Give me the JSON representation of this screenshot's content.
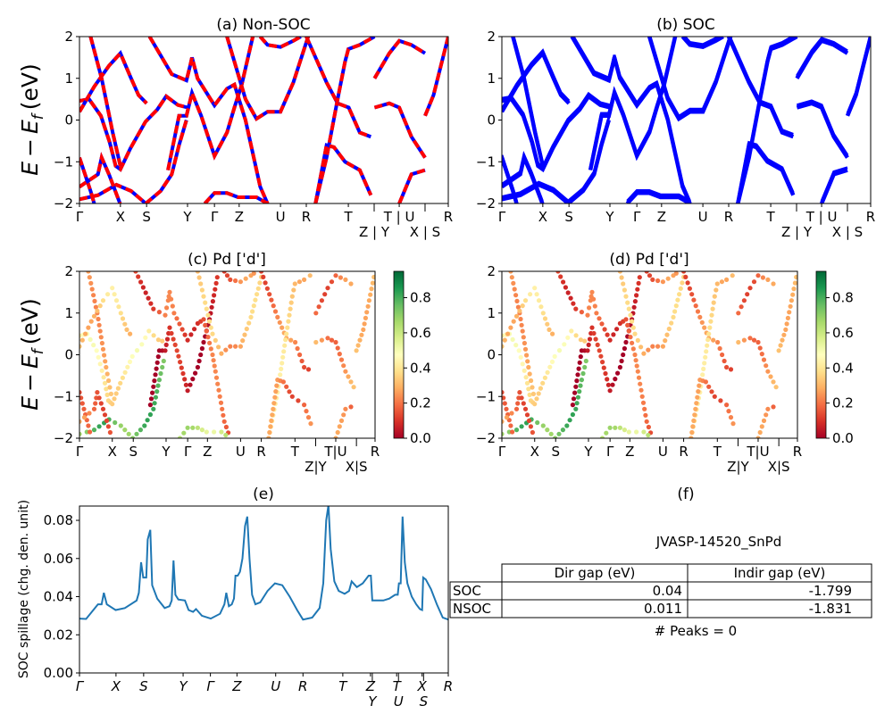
{
  "ylabel": {
    "e": "E",
    "minus": "−",
    "sub": "f",
    "unit": "(eV)"
  },
  "kpath_labels": [
    "Γ",
    "X",
    "S",
    "Y",
    "Γ",
    "Z",
    "U",
    "R",
    "T",
    "Z|Y",
    "T|U",
    "X|S",
    "R"
  ],
  "kpath_label_text": [
    "Γ",
    "X",
    "S",
    "Y",
    "Γ",
    "Z",
    "U",
    "R",
    "T",
    "Z | Y",
    "T | U",
    "X | S",
    "R"
  ],
  "kpath_positions": [
    0,
    0.111,
    0.182,
    0.293,
    0.366,
    0.433,
    0.545,
    0.615,
    0.729,
    0.799,
    0.867,
    0.937,
    1
  ],
  "chart_data": [
    {
      "panel": "a",
      "type": "line",
      "title": "(a) Non-SOC",
      "ylim": [
        -2,
        2
      ],
      "yticks": [
        "−2",
        "−1",
        "0",
        "1",
        "2"
      ],
      "colors": {
        "line": "#ff0000",
        "dash": "#0000ff"
      }
    },
    {
      "panel": "b",
      "type": "line",
      "title": "(b) SOC",
      "ylim": [
        -2,
        2
      ],
      "yticks": [
        "−2",
        "−1",
        "0",
        "1",
        "2"
      ],
      "colors": {
        "line": "#0000ff"
      }
    },
    {
      "panel": "c",
      "type": "scatter",
      "title": "(c)  Pd ['d']",
      "ylim": [
        -2,
        2
      ],
      "yticks": [
        "−2",
        "−1",
        "0",
        "1",
        "2"
      ],
      "colorbar": {
        "range": [
          0,
          0.95
        ],
        "ticks": [
          "0.0",
          "0.2",
          "0.4",
          "0.6",
          "0.8"
        ],
        "colormap": "RdYlGn"
      }
    },
    {
      "panel": "d",
      "type": "scatter",
      "title": "(d) Pd ['d']",
      "ylim": [
        -2,
        2
      ],
      "yticks": [
        "−2",
        "−1",
        "0",
        "1",
        "2"
      ],
      "colorbar": {
        "range": [
          0,
          0.95
        ],
        "ticks": [
          "0.0",
          "0.2",
          "0.4",
          "0.6",
          "0.8"
        ],
        "colormap": "RdYlGn"
      }
    },
    {
      "panel": "e",
      "type": "line",
      "title": "(e)",
      "ylabel": "SOC spillage (chg. den. unit)",
      "ylim": [
        0,
        0.0875
      ],
      "yticks": [
        "0.00",
        "0.02",
        "0.04",
        "0.06",
        "0.08"
      ],
      "xtick_labels": [
        "Γ",
        "X",
        "S",
        "Y",
        "Γ",
        "Z",
        "U",
        "R",
        "T",
        "Z",
        "Y",
        "T",
        "U",
        "X",
        "S",
        "R"
      ],
      "xtick_positions": [
        0,
        9.9,
        17.4,
        28.1,
        35.5,
        42.7,
        53.2,
        60.6,
        71.4,
        78.9,
        79.4,
        86.0,
        86.5,
        92.9,
        93.3,
        100
      ],
      "color": "#1f77b4",
      "x": [
        0,
        1.8,
        5.0,
        6.0,
        6.6,
        7.4,
        9.8,
        12.3,
        15.5,
        16.1,
        16.7,
        17.3,
        18.1,
        18.5,
        19.2,
        19.7,
        21.1,
        23.1,
        24.4,
        25.0,
        25.5,
        26.0,
        26.8,
        28.6,
        29.6,
        30.8,
        31.6,
        33.2,
        35.6,
        38.1,
        39.3,
        39.8,
        40.5,
        41.3,
        41.9,
        42.3,
        42.9,
        43.5,
        44.2,
        44.9,
        45.5,
        46.1,
        46.8,
        47.7,
        49.0,
        51.0,
        53.0,
        55.0,
        57.0,
        59.0,
        60.6,
        63.1,
        65.1,
        66.1,
        66.9,
        67.5,
        68.1,
        69.1,
        70.3,
        71.9,
        73.1,
        73.8,
        75.2,
        76.8,
        78.4,
        79.0,
        79.4,
        82.4,
        84.0,
        85.6,
        86.3,
        86.6,
        87.1,
        87.6,
        88.2,
        88.9,
        90.1,
        91.3,
        92.3,
        92.9,
        93.2,
        93.9,
        95.3,
        96.9,
        98.5,
        100
      ],
      "y": [
        0.0285,
        0.0283,
        0.036,
        0.036,
        0.042,
        0.036,
        0.033,
        0.034,
        0.038,
        0.042,
        0.058,
        0.05,
        0.05,
        0.07,
        0.075,
        0.046,
        0.039,
        0.034,
        0.035,
        0.038,
        0.059,
        0.041,
        0.0385,
        0.038,
        0.033,
        0.032,
        0.0335,
        0.03,
        0.0285,
        0.031,
        0.036,
        0.042,
        0.035,
        0.036,
        0.039,
        0.051,
        0.051,
        0.053,
        0.06,
        0.077,
        0.082,
        0.06,
        0.041,
        0.036,
        0.037,
        0.043,
        0.047,
        0.046,
        0.04,
        0.033,
        0.028,
        0.029,
        0.034,
        0.047,
        0.08,
        0.088,
        0.065,
        0.048,
        0.043,
        0.0415,
        0.043,
        0.048,
        0.045,
        0.047,
        0.051,
        0.051,
        0.038,
        0.038,
        0.039,
        0.041,
        0.041,
        0.047,
        0.047,
        0.082,
        0.058,
        0.047,
        0.04,
        0.036,
        0.0335,
        0.033,
        0.05,
        0.049,
        0.044,
        0.036,
        0.029,
        0.028
      ]
    },
    {
      "panel": "f",
      "type": "table",
      "title": "(f)",
      "material": "JVASP-14520_SnPd",
      "columns": [
        "Dir gap (eV)",
        "Indir gap (eV)"
      ],
      "rows": [
        {
          "label": "SOC",
          "dir": "0.04",
          "indir": "-1.799"
        },
        {
          "label": "NSOC",
          "dir": "0.011",
          "indir": "-1.831"
        }
      ],
      "peaks": "# Peaks = 0"
    }
  ],
  "bands": [
    {
      "pd_d": 0.42,
      "points": [
        [
          0,
          0.46
        ],
        [
          0.026,
          0.5
        ],
        [
          0.058,
          0.1
        ],
        [
          0.082,
          -0.54
        ],
        [
          0.098,
          -1.1
        ],
        [
          0.111,
          -1.18
        ],
        [
          0.138,
          -0.68
        ],
        [
          0.179,
          -0.04
        ],
        [
          0.211,
          0.25
        ],
        [
          0.235,
          0.57
        ],
        [
          0.267,
          0.36
        ],
        [
          0.293,
          0.3
        ]
      ]
    },
    {
      "pd_d": 0.05,
      "points": [
        [
          0.24,
          -1.2
        ],
        [
          0.27,
          0.1
        ],
        [
          0.29,
          0.1
        ],
        [
          0.305,
          0.65
        ],
        [
          0.33,
          0.1
        ],
        [
          0.366,
          -0.86
        ],
        [
          0.4,
          -0.3
        ],
        [
          0.42,
          0.3
        ],
        [
          0.44,
          0.85
        ],
        [
          0.47,
          2.0
        ]
      ]
    },
    {
      "pd_d": 0.15,
      "points": [
        [
          0.19,
          2
        ],
        [
          0.25,
          1.1
        ],
        [
          0.29,
          0.95
        ],
        [
          0.3,
          1.3
        ],
        [
          0.305,
          1.5
        ],
        [
          0.32,
          1.0
        ],
        [
          0.366,
          0.35
        ],
        [
          0.4,
          0.75
        ],
        [
          0.42,
          0.85
        ],
        [
          0.45,
          0.0
        ],
        [
          0.46,
          -0.4
        ],
        [
          0.49,
          -1.6
        ],
        [
          0.51,
          -2
        ]
      ]
    },
    {
      "pd_d": 0.3,
      "points": [
        [
          0.4,
          2
        ],
        [
          0.45,
          0.5
        ],
        [
          0.48,
          0.03
        ],
        [
          0.51,
          0.2
        ],
        [
          0.545,
          0.2
        ],
        [
          0.58,
          0.9
        ],
        [
          0.62,
          2
        ]
      ]
    },
    {
      "pd_d": 0.2,
      "points": [
        [
          0.49,
          2
        ],
        [
          0.51,
          1.8
        ],
        [
          0.545,
          1.75
        ],
        [
          0.58,
          1.9
        ],
        [
          0.6,
          2
        ]
      ]
    },
    {
      "pd_d": 0.2,
      "points": [
        [
          0.615,
          2
        ],
        [
          0.67,
          0.9
        ],
        [
          0.7,
          0.4
        ],
        [
          0.73,
          0.3
        ],
        [
          0.76,
          -0.3
        ],
        [
          0.79,
          -0.4
        ]
      ]
    },
    {
      "pd_d": 0.35,
      "points": [
        [
          0.64,
          -2
        ],
        [
          0.67,
          -0.9
        ],
        [
          0.7,
          0.5
        ],
        [
          0.72,
          1.4
        ],
        [
          0.729,
          1.7
        ],
        [
          0.76,
          1.8
        ],
        [
          0.8,
          2
        ]
      ]
    },
    {
      "pd_d": 0.2,
      "points": [
        [
          0.64,
          -2
        ],
        [
          0.67,
          -0.6
        ],
        [
          0.69,
          -0.65
        ],
        [
          0.72,
          -1.0
        ],
        [
          0.76,
          -1.2
        ],
        [
          0.79,
          -1.8
        ]
      ]
    },
    {
      "pd_d": 0.25,
      "points": [
        [
          0.8,
          0.3
        ],
        [
          0.84,
          0.4
        ],
        [
          0.867,
          0.3
        ],
        [
          0.9,
          -0.4
        ],
        [
          0.937,
          -0.9
        ]
      ]
    },
    {
      "pd_d": 0.2,
      "points": [
        [
          0.8,
          1.0
        ],
        [
          0.84,
          1.6
        ],
        [
          0.867,
          1.9
        ],
        [
          0.9,
          1.8
        ],
        [
          0.937,
          1.6
        ]
      ]
    },
    {
      "pd_d": 0.35,
      "points": [
        [
          0.937,
          0.1
        ],
        [
          0.96,
          0.6
        ],
        [
          0.98,
          1.3
        ],
        [
          1.0,
          2.0
        ]
      ]
    },
    {
      "pd_d": 0.75,
      "points": [
        [
          0,
          -1.9
        ],
        [
          0.05,
          -1.8
        ],
        [
          0.1,
          -1.55
        ],
        [
          0.14,
          -1.7
        ],
        [
          0.18,
          -2.0
        ],
        [
          0.22,
          -1.7
        ],
        [
          0.25,
          -1.3
        ],
        [
          0.27,
          -0.6
        ],
        [
          0.29,
          0.0
        ]
      ]
    },
    {
      "pd_d": 0.6,
      "points": [
        [
          0.34,
          -2
        ],
        [
          0.366,
          -1.75
        ],
        [
          0.4,
          -1.75
        ],
        [
          0.43,
          -1.85
        ],
        [
          0.48,
          -1.85
        ],
        [
          0.51,
          -2
        ]
      ]
    },
    {
      "pd_d": 0.1,
      "points": [
        [
          0,
          -0.9
        ],
        [
          0.03,
          -1.7
        ],
        [
          0.04,
          -2
        ]
      ]
    },
    {
      "pd_d": 0.2,
      "points": [
        [
          0,
          -1.6
        ],
        [
          0.05,
          -1.3
        ],
        [
          0.06,
          -0.9
        ],
        [
          0.08,
          -1.3
        ],
        [
          0.11,
          -2.0
        ]
      ]
    },
    {
      "pd_d": 0.3,
      "points": [
        [
          0.03,
          2
        ],
        [
          0.06,
          1.0
        ],
        [
          0.09,
          -0.3
        ],
        [
          0.111,
          -1.1
        ]
      ]
    },
    {
      "pd_d": 0.35,
      "points": [
        [
          0,
          0.2
        ],
        [
          0.04,
          0.8
        ],
        [
          0.08,
          1.3
        ],
        [
          0.111,
          1.6
        ],
        [
          0.14,
          1.0
        ],
        [
          0.16,
          0.6
        ],
        [
          0.182,
          0.4
        ]
      ]
    },
    {
      "pd_d": 0.2,
      "points": [
        [
          0.867,
          -2
        ],
        [
          0.9,
          -1.3
        ],
        [
          0.937,
          -1.2
        ]
      ]
    }
  ]
}
